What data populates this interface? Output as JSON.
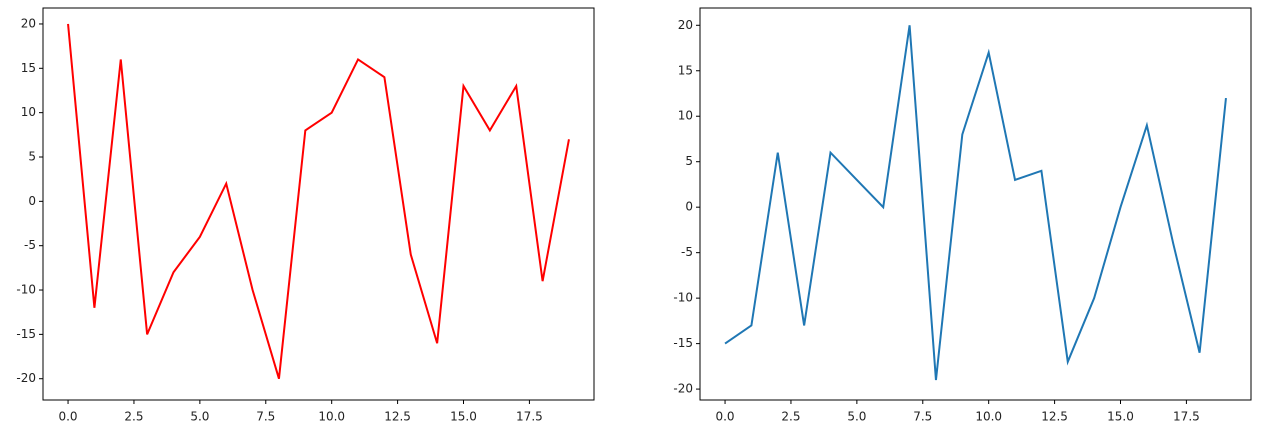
{
  "chart_data": [
    {
      "type": "line",
      "color": "#ff0000",
      "x": [
        0,
        1,
        2,
        3,
        4,
        5,
        6,
        7,
        8,
        9,
        10,
        11,
        12,
        13,
        14,
        15,
        16,
        17,
        18,
        19
      ],
      "values": [
        20,
        -12,
        16,
        -15,
        -8,
        -4,
        2,
        -10,
        -20,
        8,
        10,
        16,
        14,
        -6,
        -16,
        13,
        8,
        13,
        -9,
        7
      ],
      "xlim": [
        -0.95,
        19.95
      ],
      "ylim": [
        -22.4,
        21.8
      ],
      "xticks": [
        {
          "value": 0,
          "label": "0.0"
        },
        2.5,
        {
          "value": 5,
          "label": "5.0"
        },
        7.5,
        {
          "value": 10,
          "label": "10.0"
        },
        12.5,
        {
          "value": 15,
          "label": "15.0"
        },
        17.5
      ],
      "yticks": [
        -20,
        -15,
        -10,
        -5,
        0,
        5,
        10,
        15,
        20
      ]
    },
    {
      "type": "line",
      "color": "#1f77b4",
      "x": [
        0,
        1,
        2,
        3,
        4,
        5,
        6,
        7,
        8,
        9,
        10,
        11,
        12,
        13,
        14,
        15,
        16,
        17,
        18,
        19
      ],
      "values": [
        -15,
        -13,
        6,
        -13,
        6,
        3,
        0,
        20,
        -19,
        8,
        17,
        3,
        4,
        -17,
        -10,
        0,
        9,
        -4,
        -16,
        12
      ],
      "xlim": [
        -0.95,
        19.95
      ],
      "ylim": [
        -21.2,
        21.9
      ],
      "xticks": [
        {
          "value": 0,
          "label": "0.0"
        },
        2.5,
        {
          "value": 5,
          "label": "5.0"
        },
        7.5,
        {
          "value": 10,
          "label": "10.0"
        },
        12.5,
        {
          "value": 15,
          "label": "15.0"
        },
        17.5
      ],
      "yticks": [
        -20,
        -15,
        -10,
        -5,
        0,
        5,
        10,
        15,
        20
      ]
    }
  ]
}
